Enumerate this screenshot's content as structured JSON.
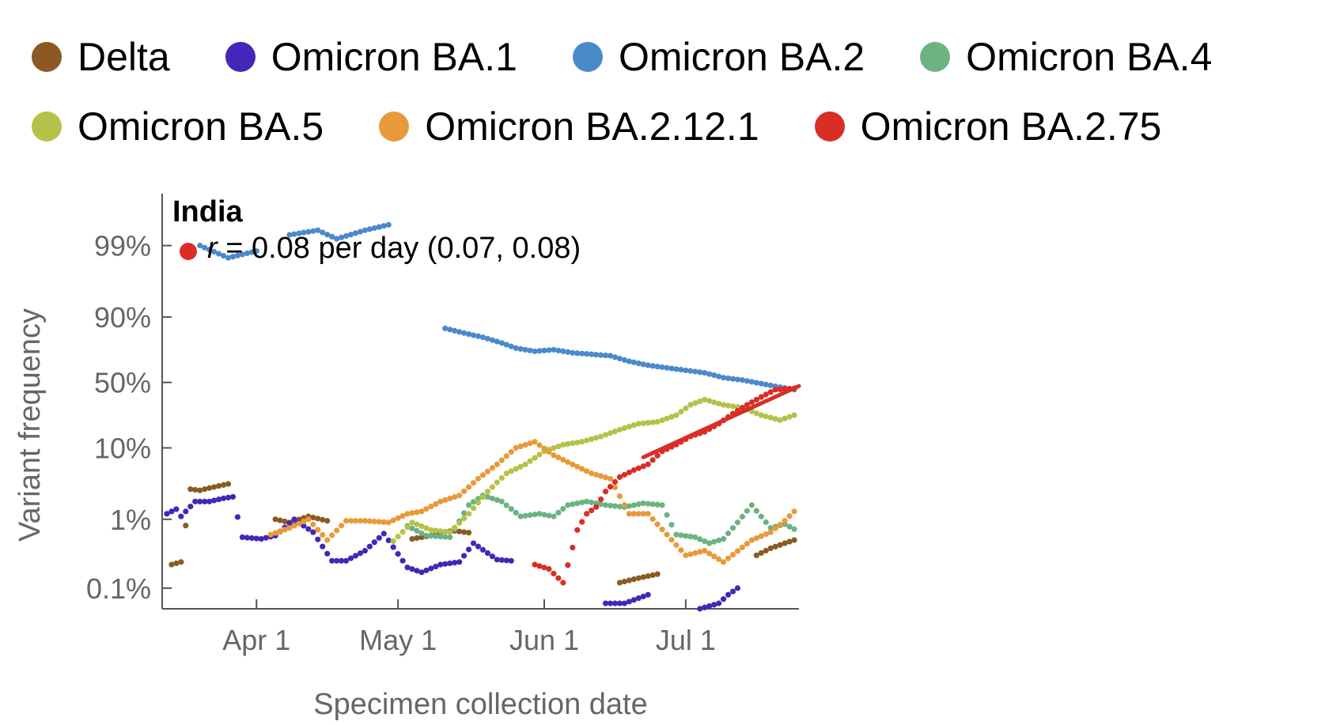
{
  "legend": {
    "rows": [
      [
        {
          "label": "Delta",
          "color": "#8B5A22"
        },
        {
          "label": "Omicron BA.1",
          "color": "#4227B8"
        },
        {
          "label": "Omicron BA.2",
          "color": "#4A8ACB"
        },
        {
          "label": "Omicron BA.4",
          "color": "#6CB382"
        }
      ],
      [
        {
          "label": "Omicron BA.5",
          "color": "#B5C24A"
        },
        {
          "label": "Omicron BA.2.12.1",
          "color": "#E89A3A"
        },
        {
          "label": "Omicron BA.2.75",
          "color": "#D92E25"
        }
      ]
    ]
  },
  "chart_data": {
    "type": "scatter",
    "panel_title": "India",
    "annotation": {
      "symbol": "r",
      "text": " = 0.08 per day (0.07, 0.08)",
      "color": "#D92E25"
    },
    "xlabel": "Specimen collection date",
    "ylabel": "Variant frequency",
    "x_range": [
      "2022-03-12",
      "2022-07-25"
    ],
    "x_ticks": [
      {
        "date": "2022-04-01",
        "label": "Apr 1"
      },
      {
        "date": "2022-05-01",
        "label": "May 1"
      },
      {
        "date": "2022-06-01",
        "label": "Jun 1"
      },
      {
        "date": "2022-07-01",
        "label": "Jul 1"
      }
    ],
    "y_scale": "logit",
    "y_range": [
      0.0005,
      0.997
    ],
    "y_ticks": [
      {
        "value": 0.001,
        "label": "0.1%"
      },
      {
        "value": 0.01,
        "label": "1%"
      },
      {
        "value": 0.1,
        "label": "10%"
      },
      {
        "value": 0.5,
        "label": "50%"
      },
      {
        "value": 0.9,
        "label": "90%"
      },
      {
        "value": 0.99,
        "label": "99%"
      }
    ],
    "grid": false,
    "legend_position": "top",
    "series": [
      {
        "name": "Delta",
        "color": "#8B5A22",
        "points": [
          [
            "2022-03-14",
            0.0022
          ],
          [
            "2022-03-16",
            0.0024
          ],
          [
            "2022-03-18",
            0.027
          ],
          [
            "2022-03-20",
            0.026
          ],
          [
            "2022-03-22",
            0.028
          ],
          [
            "2022-03-24",
            0.03
          ],
          [
            "2022-03-26",
            0.032
          ],
          [
            "2022-04-05",
            0.01
          ],
          [
            "2022-04-08",
            0.009
          ],
          [
            "2022-04-12",
            0.011
          ],
          [
            "2022-04-16",
            0.0095
          ],
          [
            "2022-05-04",
            0.0052
          ],
          [
            "2022-05-08",
            0.0058
          ],
          [
            "2022-05-10",
            0.0065
          ],
          [
            "2022-05-13",
            0.0068
          ],
          [
            "2022-05-16",
            0.0064
          ],
          [
            "2022-06-17",
            0.0012
          ],
          [
            "2022-06-21",
            0.0014
          ],
          [
            "2022-06-25",
            0.0016
          ],
          [
            "2022-07-16",
            0.003
          ],
          [
            "2022-07-19",
            0.0038
          ],
          [
            "2022-07-22",
            0.0045
          ],
          [
            "2022-07-24",
            0.005
          ]
        ]
      },
      {
        "name": "Omicron BA.1",
        "color": "#4227B8",
        "points": [
          [
            "2022-03-13",
            0.012
          ],
          [
            "2022-03-15",
            0.014
          ],
          [
            "2022-03-16",
            0.011
          ],
          [
            "2022-03-19",
            0.018
          ],
          [
            "2022-03-22",
            0.018
          ],
          [
            "2022-03-25",
            0.02
          ],
          [
            "2022-03-27",
            0.021
          ],
          [
            "2022-03-29",
            0.0055
          ],
          [
            "2022-04-02",
            0.0052
          ],
          [
            "2022-04-05",
            0.0058
          ],
          [
            "2022-04-09",
            0.01
          ],
          [
            "2022-04-13",
            0.0065
          ],
          [
            "2022-04-17",
            0.0025
          ],
          [
            "2022-04-20",
            0.0025
          ],
          [
            "2022-04-24",
            0.0035
          ],
          [
            "2022-04-28",
            0.0062
          ],
          [
            "2022-05-03",
            0.002
          ],
          [
            "2022-05-06",
            0.0017
          ],
          [
            "2022-05-10",
            0.0022
          ],
          [
            "2022-05-14",
            0.0024
          ],
          [
            "2022-05-17",
            0.0045
          ],
          [
            "2022-05-22",
            0.0026
          ],
          [
            "2022-05-25",
            0.0025
          ],
          [
            "2022-06-14",
            0.0006
          ],
          [
            "2022-06-18",
            0.0006
          ],
          [
            "2022-06-23",
            0.0008
          ],
          [
            "2022-07-04",
            0.0005
          ],
          [
            "2022-07-08",
            0.0006
          ],
          [
            "2022-07-10",
            0.0008
          ],
          [
            "2022-07-12",
            0.001
          ]
        ]
      },
      {
        "name": "Omicron BA.2",
        "color": "#4A8ACB",
        "points": [
          [
            "2022-03-20",
            0.99
          ],
          [
            "2022-03-26",
            0.985
          ],
          [
            "2022-04-01",
            0.988
          ],
          [
            "2022-04-08",
            0.993
          ],
          [
            "2022-04-14",
            0.994
          ],
          [
            "2022-04-18",
            0.992
          ],
          [
            "2022-04-24",
            0.994
          ],
          [
            "2022-04-29",
            0.995
          ],
          [
            "2022-05-11",
            0.86
          ],
          [
            "2022-05-15",
            0.84
          ],
          [
            "2022-05-19",
            0.82
          ],
          [
            "2022-05-23",
            0.79
          ],
          [
            "2022-05-26",
            0.76
          ],
          [
            "2022-05-30",
            0.74
          ],
          [
            "2022-06-03",
            0.75
          ],
          [
            "2022-06-07",
            0.73
          ],
          [
            "2022-06-11",
            0.72
          ],
          [
            "2022-06-15",
            0.71
          ],
          [
            "2022-06-19",
            0.67
          ],
          [
            "2022-06-23",
            0.64
          ],
          [
            "2022-06-27",
            0.62
          ],
          [
            "2022-07-01",
            0.6
          ],
          [
            "2022-07-05",
            0.58
          ],
          [
            "2022-07-09",
            0.54
          ],
          [
            "2022-07-13",
            0.52
          ],
          [
            "2022-07-17",
            0.49
          ],
          [
            "2022-07-21",
            0.46
          ],
          [
            "2022-07-24",
            0.44
          ]
        ]
      },
      {
        "name": "Omicron BA.4",
        "color": "#6CB382",
        "points": [
          [
            "2022-05-03",
            0.008
          ],
          [
            "2022-05-07",
            0.0058
          ],
          [
            "2022-05-12",
            0.0055
          ],
          [
            "2022-05-16",
            0.016
          ],
          [
            "2022-05-19",
            0.022
          ],
          [
            "2022-05-23",
            0.018
          ],
          [
            "2022-05-27",
            0.011
          ],
          [
            "2022-05-31",
            0.012
          ],
          [
            "2022-06-03",
            0.011
          ],
          [
            "2022-06-06",
            0.016
          ],
          [
            "2022-06-10",
            0.018
          ],
          [
            "2022-06-14",
            0.016
          ],
          [
            "2022-06-18",
            0.015
          ],
          [
            "2022-06-22",
            0.017
          ],
          [
            "2022-06-26",
            0.016
          ],
          [
            "2022-06-29",
            0.006
          ],
          [
            "2022-07-03",
            0.0055
          ],
          [
            "2022-07-06",
            0.0045
          ],
          [
            "2022-07-09",
            0.0052
          ],
          [
            "2022-07-12",
            0.009
          ],
          [
            "2022-07-15",
            0.016
          ],
          [
            "2022-07-19",
            0.0075
          ],
          [
            "2022-07-22",
            0.0085
          ],
          [
            "2022-07-24",
            0.0072
          ]
        ]
      },
      {
        "name": "Omicron BA.5",
        "color": "#B5C24A",
        "points": [
          [
            "2022-04-30",
            0.0048
          ],
          [
            "2022-05-04",
            0.009
          ],
          [
            "2022-05-08",
            0.007
          ],
          [
            "2022-05-12",
            0.0065
          ],
          [
            "2022-05-16",
            0.012
          ],
          [
            "2022-05-20",
            0.025
          ],
          [
            "2022-05-24",
            0.045
          ],
          [
            "2022-05-28",
            0.06
          ],
          [
            "2022-06-01",
            0.09
          ],
          [
            "2022-06-05",
            0.11
          ],
          [
            "2022-06-09",
            0.12
          ],
          [
            "2022-06-13",
            0.14
          ],
          [
            "2022-06-17",
            0.17
          ],
          [
            "2022-06-21",
            0.2
          ],
          [
            "2022-06-25",
            0.21
          ],
          [
            "2022-06-29",
            0.25
          ],
          [
            "2022-07-02",
            0.32
          ],
          [
            "2022-07-05",
            0.36
          ],
          [
            "2022-07-09",
            0.32
          ],
          [
            "2022-07-13",
            0.3
          ],
          [
            "2022-07-17",
            0.25
          ],
          [
            "2022-07-21",
            0.22
          ],
          [
            "2022-07-24",
            0.25
          ]
        ]
      },
      {
        "name": "Omicron BA.2.12.1",
        "color": "#E89A3A",
        "points": [
          [
            "2022-04-04",
            0.006
          ],
          [
            "2022-04-08",
            0.0075
          ],
          [
            "2022-04-12",
            0.01
          ],
          [
            "2022-04-16",
            0.005
          ],
          [
            "2022-04-20",
            0.0095
          ],
          [
            "2022-04-24",
            0.0095
          ],
          [
            "2022-04-29",
            0.009
          ],
          [
            "2022-05-03",
            0.012
          ],
          [
            "2022-05-06",
            0.013
          ],
          [
            "2022-05-10",
            0.018
          ],
          [
            "2022-05-14",
            0.022
          ],
          [
            "2022-05-18",
            0.038
          ],
          [
            "2022-05-22",
            0.06
          ],
          [
            "2022-05-26",
            0.1
          ],
          [
            "2022-05-30",
            0.12
          ],
          [
            "2022-06-03",
            0.08
          ],
          [
            "2022-06-07",
            0.06
          ],
          [
            "2022-06-11",
            0.045
          ],
          [
            "2022-06-15",
            0.038
          ],
          [
            "2022-06-19",
            0.012
          ],
          [
            "2022-06-23",
            0.012
          ],
          [
            "2022-06-27",
            0.006
          ],
          [
            "2022-07-01",
            0.003
          ],
          [
            "2022-07-05",
            0.0035
          ],
          [
            "2022-07-09",
            0.0024
          ],
          [
            "2022-07-15",
            0.005
          ],
          [
            "2022-07-19",
            0.0065
          ],
          [
            "2022-07-22",
            0.0095
          ],
          [
            "2022-07-24",
            0.013
          ]
        ]
      },
      {
        "name": "Omicron BA.2.75",
        "color": "#D92E25",
        "points": [
          [
            "2022-05-30",
            0.0022
          ],
          [
            "2022-06-02",
            0.0019
          ],
          [
            "2022-06-05",
            0.0012
          ],
          [
            "2022-06-08",
            0.007
          ],
          [
            "2022-06-10",
            0.012
          ],
          [
            "2022-06-12",
            0.015
          ],
          [
            "2022-06-14",
            0.025
          ],
          [
            "2022-06-17",
            0.04
          ],
          [
            "2022-06-20",
            0.05
          ],
          [
            "2022-06-23",
            0.06
          ],
          [
            "2022-06-26",
            0.09
          ],
          [
            "2022-06-29",
            0.11
          ],
          [
            "2022-07-02",
            0.14
          ],
          [
            "2022-07-05",
            0.16
          ],
          [
            "2022-07-08",
            0.2
          ],
          [
            "2022-07-11",
            0.26
          ],
          [
            "2022-07-14",
            0.32
          ],
          [
            "2022-07-17",
            0.38
          ],
          [
            "2022-07-20",
            0.44
          ],
          [
            "2022-07-24",
            0.45
          ]
        ]
      }
    ],
    "fit_line": {
      "color": "#D92E25",
      "start": [
        "2022-06-22",
        0.075
      ],
      "end": [
        "2022-07-25",
        0.47
      ]
    }
  }
}
